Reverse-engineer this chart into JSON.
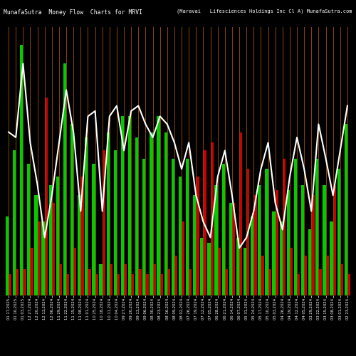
{
  "title_left": "MunafaSutra  Money Flow  Charts for MRVI",
  "title_right": "(Maravai   Lifesciences Holdings Inc Cl A) MunafaSutra.com",
  "background_color": "#000000",
  "text_color": "#ffffff",
  "separator_color": "#8B4500",
  "line_color": "#ffffff",
  "green_color": "#00cc00",
  "red_color": "#cc0000",
  "labels": [
    "01 17,2025",
    "01 10,2025",
    "01 03,2025",
    "12 27,2024",
    "12 20,2024",
    "12 13,2024",
    "12 06,2024",
    "11 29,2024",
    "11 22,2024",
    "11 15,2024",
    "11 08,2024",
    "11 01,2024",
    "10 25,2024",
    "10 18,2024",
    "10 11,2024",
    "10 04,2024",
    "09 27,2024",
    "09 20,2024",
    "09 13,2024",
    "09 06,2024",
    "08 30,2024",
    "08 23,2024",
    "08 16,2024",
    "08 09,2024",
    "08 02,2024",
    "07 26,2024",
    "07 19,2024",
    "07 12,2024",
    "07 05,2024",
    "06 28,2024",
    "06 21,2024",
    "06 14,2024",
    "06 07,2024",
    "05 31,2024",
    "05 24,2024",
    "05 17,2024",
    "05 10,2024",
    "05 03,2024",
    "04 26,2024",
    "04 19,2024",
    "04 12,2024",
    "04 05,2024",
    "03 29,2024",
    "03 22,2024",
    "03 15,2024",
    "03 08,2024",
    "03 01,2024",
    "02 23,2024"
  ],
  "green_bars": [
    30,
    55,
    95,
    50,
    38,
    28,
    42,
    45,
    88,
    65,
    38,
    60,
    50,
    12,
    62,
    55,
    68,
    68,
    60,
    52,
    62,
    68,
    62,
    52,
    45,
    52,
    38,
    22,
    20,
    42,
    50,
    35,
    22,
    18,
    30,
    42,
    48,
    32,
    28,
    40,
    52,
    42,
    25,
    52,
    42,
    28,
    48,
    65
  ],
  "red_bars": [
    8,
    10,
    10,
    18,
    28,
    75,
    35,
    12,
    8,
    18,
    45,
    10,
    8,
    55,
    12,
    8,
    12,
    8,
    10,
    8,
    12,
    8,
    10,
    15,
    28,
    10,
    45,
    55,
    58,
    18,
    10,
    35,
    62,
    48,
    38,
    15,
    10,
    40,
    52,
    18,
    8,
    15,
    38,
    10,
    15,
    42,
    12,
    8
  ],
  "line_values": [
    62,
    60,
    88,
    58,
    42,
    22,
    38,
    58,
    78,
    62,
    32,
    68,
    70,
    32,
    68,
    72,
    55,
    70,
    72,
    65,
    60,
    68,
    65,
    58,
    48,
    58,
    38,
    28,
    22,
    45,
    55,
    38,
    18,
    22,
    32,
    48,
    58,
    35,
    25,
    45,
    60,
    48,
    32,
    65,
    52,
    38,
    55,
    72
  ]
}
